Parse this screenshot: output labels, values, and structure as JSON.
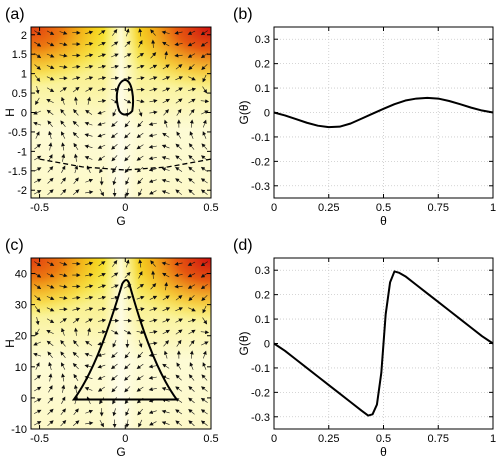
{
  "chart_data": [
    {
      "panel_label": "(a)",
      "type": "heatmap",
      "xlabel": "G",
      "ylabel": "H",
      "xlim": [
        -0.55,
        0.5
      ],
      "ylim": [
        -2.2,
        2.2
      ],
      "xticks": [
        "-0.5",
        "0",
        "0.5"
      ],
      "yticks": [
        "2",
        "1.5",
        "1",
        "0.5",
        "0",
        "-0.5",
        "-1",
        "-1.5",
        "-2"
      ],
      "colormap": [
        "#fffde0",
        "#fbf27a",
        "#f2ee20",
        "#f2a000",
        "#e04010",
        "#d21010"
      ],
      "overlay": "vector field (quiver)",
      "closed_orbit": {
        "G": [
          -0.03,
          0.03,
          0.02,
          -0.02,
          -0.03
        ],
        "H": [
          0.15,
          0.1,
          0.55,
          0.6,
          0.15
        ]
      },
      "dashed_curve": {
        "G": [
          -0.5,
          -0.25,
          0,
          0.25,
          0.5
        ],
        "H": [
          -1.2,
          -1.4,
          -1.48,
          -1.4,
          -1.2
        ]
      }
    },
    {
      "panel_label": "(b)",
      "type": "line",
      "xlabel": "θ",
      "ylabel": "G(θ)",
      "xlim": [
        0,
        1
      ],
      "ylim": [
        -0.35,
        0.35
      ],
      "xticks": [
        "0",
        "0.25",
        "0.5",
        "0.75",
        "1"
      ],
      "yticks": [
        "0.3",
        "0.2",
        "0.1",
        "0",
        "-0.1",
        "-0.2",
        "-0.3"
      ],
      "grid": true,
      "series": [
        {
          "x": [
            0,
            0.05,
            0.1,
            0.15,
            0.2,
            0.25,
            0.3,
            0.35,
            0.4,
            0.45,
            0.5,
            0.55,
            0.6,
            0.65,
            0.7,
            0.75,
            0.8,
            0.85,
            0.9,
            0.95,
            1.0
          ],
          "y": [
            0.0,
            -0.012,
            -0.027,
            -0.042,
            -0.054,
            -0.06,
            -0.058,
            -0.045,
            -0.025,
            -0.005,
            0.015,
            0.034,
            0.049,
            0.057,
            0.06,
            0.057,
            0.047,
            0.034,
            0.02,
            0.008,
            0.0
          ]
        }
      ]
    },
    {
      "panel_label": "(c)",
      "type": "heatmap",
      "xlabel": "G",
      "ylabel": "H",
      "xlim": [
        -0.55,
        0.5
      ],
      "ylim": [
        -10,
        45
      ],
      "xticks": [
        "-0.5",
        "0",
        "0.5"
      ],
      "yticks": [
        "40",
        "30",
        "20",
        "10",
        "0",
        "-10"
      ],
      "colormap": [
        "#fffde0",
        "#fbf27a",
        "#f2ee20",
        "#f2a000",
        "#e04010",
        "#d21010"
      ],
      "overlay": "vector field (quiver)",
      "closed_orbit": {
        "G": [
          -0.3,
          -0.15,
          -0.03,
          0.0,
          0.03,
          0.15,
          0.3,
          0.3,
          -0.3
        ],
        "H": [
          0,
          10,
          30,
          38,
          30,
          10,
          0,
          -0.5,
          -0.5
        ]
      }
    },
    {
      "panel_label": "(d)",
      "type": "line",
      "xlabel": "θ",
      "ylabel": "G(θ)",
      "xlim": [
        0,
        1
      ],
      "ylim": [
        -0.35,
        0.35
      ],
      "xticks": [
        "0",
        "0.25",
        "0.5",
        "0.75",
        "1"
      ],
      "yticks": [
        "0.3",
        "0.2",
        "0.1",
        "0",
        "-0.1",
        "-0.2",
        "-0.3"
      ],
      "grid": true,
      "series": [
        {
          "x": [
            0,
            0.05,
            0.1,
            0.15,
            0.2,
            0.25,
            0.3,
            0.35,
            0.4,
            0.43,
            0.45,
            0.47,
            0.49,
            0.5,
            0.51,
            0.53,
            0.55,
            0.57,
            0.6,
            0.65,
            0.7,
            0.75,
            0.8,
            0.85,
            0.9,
            0.95,
            1.0
          ],
          "y": [
            0.0,
            -0.03,
            -0.065,
            -0.1,
            -0.135,
            -0.17,
            -0.205,
            -0.24,
            -0.275,
            -0.295,
            -0.29,
            -0.25,
            -0.12,
            0.0,
            0.12,
            0.25,
            0.295,
            0.29,
            0.275,
            0.24,
            0.205,
            0.17,
            0.135,
            0.1,
            0.065,
            0.03,
            0.0
          ]
        }
      ]
    }
  ]
}
